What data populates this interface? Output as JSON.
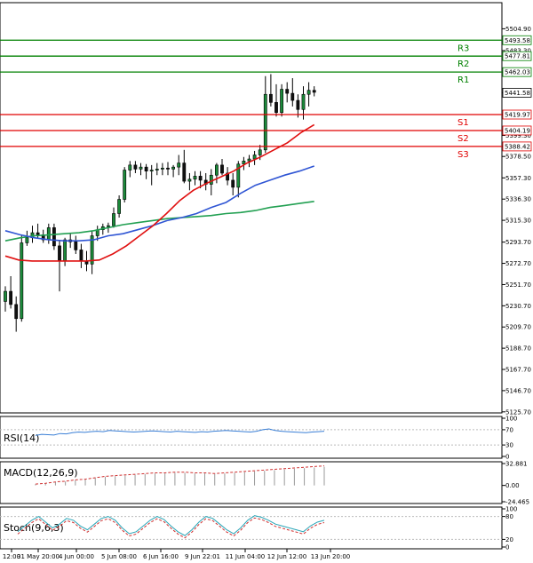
{
  "chart_data": {
    "type": "candlestick",
    "price_axis_ticks": [
      "5504.90",
      "5483.30",
      "5462.03",
      "5441.58",
      "5419.97",
      "5404.19",
      "5399.30",
      "5388.42",
      "5378.50",
      "5357.30",
      "5336.30",
      "5315.30",
      "5293.70",
      "5272.70",
      "5251.70",
      "5230.70",
      "5209.70",
      "5188.70",
      "5167.70",
      "5146.70",
      "5125.70"
    ],
    "ylim": [
      5125.7,
      5507
    ],
    "time_labels": [
      "12:00",
      "31 May 20:00",
      "4 Jun 00:00",
      "5 Jun 08:00",
      "6 Jun 16:00",
      "9 Jun 22:01",
      "11 Jun 04:00",
      "12 Jun 12:00",
      "13 Jun 20:00"
    ],
    "levels": [
      {
        "name": "R3",
        "value": 5493.58,
        "color": "#008000"
      },
      {
        "name": "R2",
        "value": 5477.81,
        "color": "#008000"
      },
      {
        "name": "R1",
        "value": 5462.03,
        "color": "#008000"
      },
      {
        "name": "S1",
        "value": 5419.97,
        "color": "#e00000"
      },
      {
        "name": "S2",
        "value": 5404.19,
        "color": "#e00000"
      },
      {
        "name": "S3",
        "value": 5388.42,
        "color": "#e00000"
      }
    ],
    "last_price": "5441.58",
    "candles": [
      [
        5235,
        5250,
        5225,
        5245
      ],
      [
        5245,
        5260,
        5228,
        5232
      ],
      [
        5232,
        5240,
        5205,
        5218
      ],
      [
        5218,
        5300,
        5215,
        5293
      ],
      [
        5293,
        5305,
        5290,
        5298
      ],
      [
        5298,
        5310,
        5293,
        5303
      ],
      [
        5303,
        5312,
        5298,
        5301
      ],
      [
        5301,
        5306,
        5293,
        5296
      ],
      [
        5296,
        5312,
        5292,
        5308
      ],
      [
        5308,
        5312,
        5286,
        5290
      ],
      [
        5290,
        5295,
        5245,
        5275
      ],
      [
        5275,
        5298,
        5270,
        5296
      ],
      [
        5296,
        5302,
        5288,
        5294
      ],
      [
        5294,
        5300,
        5282,
        5286
      ],
      [
        5286,
        5292,
        5268,
        5275
      ],
      [
        5275,
        5285,
        5265,
        5272
      ],
      [
        5272,
        5305,
        5262,
        5300
      ],
      [
        5300,
        5310,
        5295,
        5306
      ],
      [
        5306,
        5312,
        5301,
        5309
      ],
      [
        5309,
        5313,
        5303,
        5310
      ],
      [
        5310,
        5328,
        5308,
        5322
      ],
      [
        5322,
        5340,
        5318,
        5336
      ],
      [
        5336,
        5368,
        5333,
        5365
      ],
      [
        5365,
        5374,
        5358,
        5370
      ],
      [
        5370,
        5374,
        5362,
        5366
      ],
      [
        5366,
        5372,
        5360,
        5368
      ],
      [
        5368,
        5371,
        5356,
        5364
      ],
      [
        5364,
        5370,
        5350,
        5365
      ],
      [
        5365,
        5372,
        5360,
        5366
      ],
      [
        5366,
        5372,
        5360,
        5367
      ],
      [
        5367,
        5373,
        5360,
        5366
      ],
      [
        5366,
        5370,
        5358,
        5368
      ],
      [
        5368,
        5380,
        5360,
        5372
      ],
      [
        5372,
        5385,
        5352,
        5354
      ],
      [
        5354,
        5362,
        5345,
        5356
      ],
      [
        5356,
        5364,
        5350,
        5359
      ],
      [
        5359,
        5364,
        5347,
        5355
      ],
      [
        5355,
        5362,
        5345,
        5351
      ],
      [
        5351,
        5366,
        5340,
        5360
      ],
      [
        5360,
        5372,
        5352,
        5370
      ],
      [
        5370,
        5376,
        5360,
        5362
      ],
      [
        5362,
        5368,
        5350,
        5355
      ],
      [
        5355,
        5362,
        5340,
        5348
      ],
      [
        5348,
        5374,
        5338,
        5371
      ],
      [
        5371,
        5378,
        5365,
        5374
      ],
      [
        5374,
        5380,
        5368,
        5376
      ],
      [
        5376,
        5384,
        5370,
        5380
      ],
      [
        5380,
        5390,
        5375,
        5385
      ],
      [
        5385,
        5458,
        5382,
        5440
      ],
      [
        5440,
        5460,
        5428,
        5432
      ],
      [
        5432,
        5450,
        5418,
        5422
      ],
      [
        5422,
        5450,
        5418,
        5445
      ],
      [
        5445,
        5452,
        5432,
        5441
      ],
      [
        5441,
        5456,
        5428,
        5434
      ],
      [
        5434,
        5440,
        5417,
        5425
      ],
      [
        5425,
        5448,
        5415,
        5440
      ],
      [
        5440,
        5452,
        5428,
        5444
      ],
      [
        5444,
        5448,
        5438,
        5442
      ]
    ],
    "ma_red": [
      5280,
      5276,
      5275,
      5275,
      5275,
      5275,
      5275,
      5276,
      5282,
      5290,
      5300,
      5310,
      5322,
      5335,
      5345,
      5352,
      5358,
      5364,
      5372,
      5378,
      5385,
      5392,
      5402,
      5410
    ],
    "ma_blue": [
      5305,
      5301,
      5298,
      5296,
      5295,
      5295,
      5296,
      5300,
      5302,
      5306,
      5310,
      5315,
      5318,
      5322,
      5328,
      5333,
      5342,
      5350,
      5355,
      5360,
      5364,
      5369
    ],
    "ma_green": [
      5295,
      5298,
      5300,
      5301,
      5302,
      5303,
      5305,
      5308,
      5311,
      5313,
      5315,
      5317,
      5318,
      5319,
      5320,
      5322,
      5323,
      5325,
      5328,
      5330,
      5332,
      5334
    ],
    "rsi": {
      "title": "RSI(14)",
      "ticks": [
        "100",
        "70",
        "30",
        "0"
      ],
      "values": [
        55,
        58,
        57,
        56,
        60,
        59,
        62,
        64,
        63,
        65,
        66,
        65,
        68,
        67,
        66,
        65,
        64,
        65,
        66,
        67,
        66,
        65,
        64,
        66,
        65,
        64,
        63,
        65,
        64,
        66,
        67,
        68,
        67,
        66,
        65,
        64,
        66,
        70,
        72,
        68,
        66,
        65,
        64,
        63,
        62,
        64,
        65,
        66
      ]
    },
    "macd": {
      "title": "MACD(12,26,9)",
      "ticks": [
        "32.881",
        "0.00",
        "-24.465"
      ],
      "values": [
        2,
        3,
        5,
        6,
        8,
        9,
        11,
        13,
        14,
        15,
        16,
        17,
        18,
        18,
        19,
        19,
        18,
        18,
        17,
        18,
        19,
        20,
        21,
        22,
        23,
        24,
        25,
        26,
        27,
        28
      ]
    },
    "stoch": {
      "title": "Stoch(9,6,3)",
      "ticks": [
        "100",
        "80",
        "20",
        "0"
      ],
      "values": [
        40,
        55,
        70,
        80,
        65,
        50,
        60,
        75,
        70,
        55,
        45,
        60,
        75,
        80,
        70,
        50,
        35,
        40,
        55,
        70,
        80,
        72,
        55,
        40,
        30,
        45,
        65,
        80,
        75,
        60,
        45,
        35,
        50,
        70,
        82,
        78,
        70,
        60,
        55,
        50,
        45,
        40,
        55,
        65,
        70
      ]
    }
  }
}
